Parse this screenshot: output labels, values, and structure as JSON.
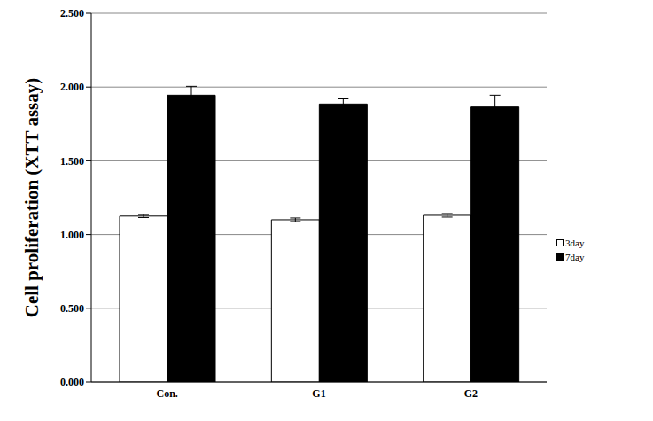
{
  "chart_data": {
    "type": "bar",
    "categories": [
      "Con.",
      "G1",
      "G2"
    ],
    "series": [
      {
        "name": "3day",
        "color": "#ffffff",
        "values": [
          1.125,
          1.1,
          1.13
        ],
        "errors": [
          0.01,
          0.012,
          0.012
        ]
      },
      {
        "name": "7day",
        "color": "#000000",
        "values": [
          1.945,
          1.885,
          1.865
        ],
        "errors": [
          0.06,
          0.035,
          0.08
        ]
      }
    ],
    "y_label": "Cell proliferation (XTT assay)",
    "ylim": [
      0,
      2.5
    ],
    "yticks": [
      {
        "value": 0,
        "label": "0.000"
      },
      {
        "value": 0.5,
        "label": "0.500"
      },
      {
        "value": 1,
        "label": "1.000"
      },
      {
        "value": 1.5,
        "label": "1.500"
      },
      {
        "value": 2,
        "label": "2.000"
      },
      {
        "value": 2.5,
        "label": "2.500"
      }
    ],
    "grid": true,
    "legend": "right"
  }
}
